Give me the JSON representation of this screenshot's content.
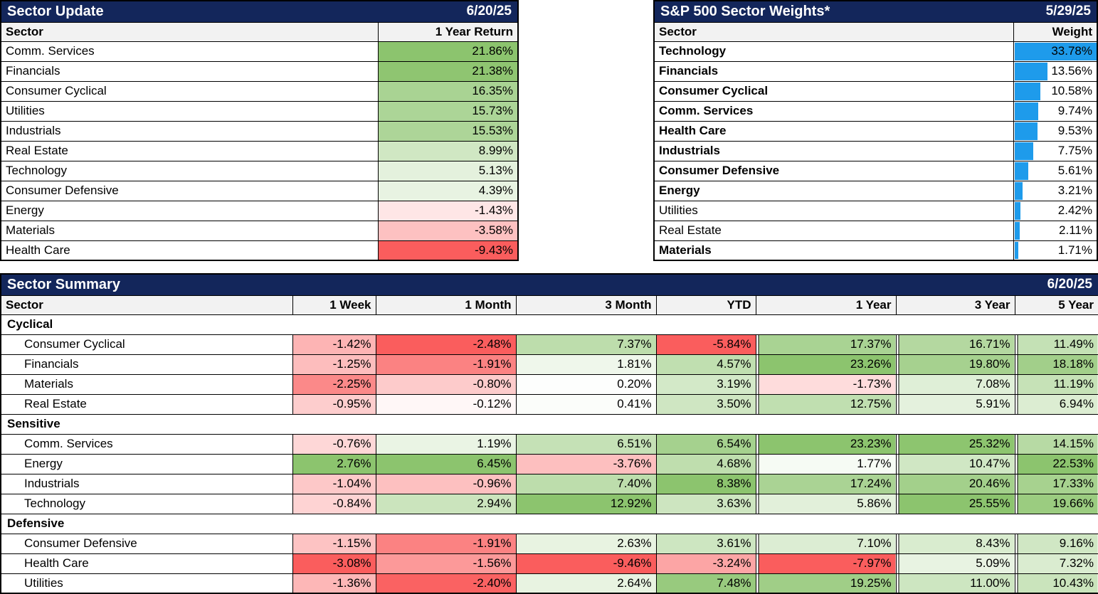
{
  "chart_data": [
    {
      "type": "heatmap-table",
      "title": "Sector Update",
      "date": "6/20/25",
      "columns": [
        "Sector",
        "1 Year Return"
      ],
      "value_format": "percent, 2 decimals",
      "color_scale": "red-white-green by column min/0/max",
      "rows": [
        {
          "sector": "Comm. Services",
          "value": 21.86
        },
        {
          "sector": "Financials",
          "value": 21.38
        },
        {
          "sector": "Consumer Cyclical",
          "value": 16.35
        },
        {
          "sector": "Utilities",
          "value": 15.73
        },
        {
          "sector": "Industrials",
          "value": 15.53
        },
        {
          "sector": "Real Estate",
          "value": 8.99
        },
        {
          "sector": "Technology",
          "value": 5.13
        },
        {
          "sector": "Consumer Defensive",
          "value": 4.39
        },
        {
          "sector": "Energy",
          "value": -1.43
        },
        {
          "sector": "Materials",
          "value": -3.58
        },
        {
          "sector": "Health Care",
          "value": -9.43
        }
      ]
    },
    {
      "type": "bar",
      "title": "S&P 500 Sector Weights*",
      "date": "5/29/25",
      "columns": [
        "Sector",
        "Weight"
      ],
      "value_format": "percent, 2 decimals",
      "bar_max": 33.78,
      "rows": [
        {
          "sector": "Technology",
          "value": 33.78,
          "bold": true
        },
        {
          "sector": "Financials",
          "value": 13.56,
          "bold": true
        },
        {
          "sector": "Consumer Cyclical",
          "value": 10.58,
          "bold": true
        },
        {
          "sector": "Comm. Services",
          "value": 9.74,
          "bold": true
        },
        {
          "sector": "Health Care",
          "value": 9.53,
          "bold": true
        },
        {
          "sector": "Industrials",
          "value": 7.75,
          "bold": true
        },
        {
          "sector": "Consumer Defensive",
          "value": 5.61,
          "bold": true
        },
        {
          "sector": "Energy",
          "value": 3.21,
          "bold": true
        },
        {
          "sector": "Utilities",
          "value": 2.42,
          "bold": false
        },
        {
          "sector": "Real Estate",
          "value": 2.11,
          "bold": false
        },
        {
          "sector": "Materials",
          "value": 1.71,
          "bold": true
        }
      ]
    },
    {
      "type": "heatmap-table",
      "title": "Sector Summary",
      "date": "6/20/25",
      "columns": [
        "Sector",
        "1 Week",
        "1 Month",
        "3 Month",
        "YTD",
        "1 Year",
        "3 Year",
        "5 Year"
      ],
      "value_format": "percent, 2 decimals",
      "color_scale": "red-white-green by column min/0/max",
      "groups": [
        {
          "label": "Cyclical",
          "rows": [
            {
              "sector": "Consumer Cyclical",
              "values": [
                -1.42,
                -2.48,
                7.37,
                -5.84,
                17.37,
                16.71,
                11.49
              ]
            },
            {
              "sector": "Financials",
              "values": [
                -1.25,
                -1.91,
                1.81,
                4.57,
                23.26,
                19.8,
                18.18
              ]
            },
            {
              "sector": "Materials",
              "values": [
                -2.25,
                -0.8,
                0.2,
                3.19,
                -1.73,
                7.08,
                11.19
              ]
            },
            {
              "sector": "Real Estate",
              "values": [
                -0.95,
                -0.12,
                0.41,
                3.5,
                12.75,
                5.91,
                6.94
              ]
            }
          ]
        },
        {
          "label": "Sensitive",
          "rows": [
            {
              "sector": "Comm. Services",
              "values": [
                -0.76,
                1.19,
                6.51,
                6.54,
                23.23,
                25.32,
                14.15
              ]
            },
            {
              "sector": "Energy",
              "values": [
                2.76,
                6.45,
                -3.76,
                4.68,
                1.77,
                10.47,
                22.53
              ]
            },
            {
              "sector": "Industrials",
              "values": [
                -1.04,
                -0.96,
                7.4,
                8.38,
                17.24,
                20.46,
                17.33
              ]
            },
            {
              "sector": "Technology",
              "values": [
                -0.84,
                2.94,
                12.92,
                3.63,
                5.86,
                25.55,
                19.66
              ]
            }
          ]
        },
        {
          "label": "Defensive",
          "rows": [
            {
              "sector": "Consumer Defensive",
              "values": [
                -1.15,
                -1.91,
                2.63,
                3.61,
                7.1,
                8.43,
                9.16
              ]
            },
            {
              "sector": "Health Care",
              "values": [
                -3.08,
                -1.56,
                -9.46,
                -3.24,
                -7.97,
                5.09,
                7.32
              ]
            },
            {
              "sector": "Utilities",
              "values": [
                -1.36,
                -2.4,
                2.64,
                7.48,
                19.25,
                11.0,
                10.43
              ]
            }
          ]
        }
      ]
    }
  ],
  "colors": {
    "title_bar_navy": "#13265B",
    "column_header_gray": "#F2F2F2",
    "heat_green_max": "#8CC46E",
    "heat_red_max": "#FA5D5D",
    "heat_neutral": "#FFFFFF",
    "weight_bar_blue": "#1E9BEB",
    "border_black": "#000000",
    "title_text_white": "#FFFFFF"
  }
}
